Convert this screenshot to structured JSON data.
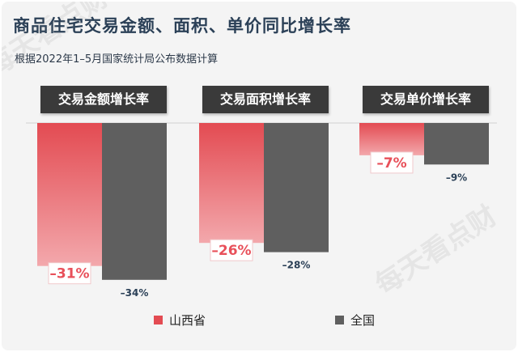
{
  "title": "商品住宅交易金额、面积、单价同比增长率",
  "subtitle": "根据2022年1–5月国家统计局公布数据计算",
  "watermark": "每天看点财",
  "colors": {
    "shanxi_top": "#e34b52",
    "shanxi_bottom": "#f3a8ac",
    "national": "#5f5f5f",
    "label_dark": "#2b4057",
    "label_red": "#e8505a"
  },
  "chart_data": {
    "type": "bar",
    "categories": [
      "交易金额增长率",
      "交易面积增长率",
      "交易单价增长率"
    ],
    "series": [
      {
        "name": "山西省",
        "values": [
          -31,
          -26,
          -7
        ],
        "labels": [
          "–31%",
          "–26%",
          "–7%"
        ]
      },
      {
        "name": "全国",
        "values": [
          -34,
          -28,
          -9
        ],
        "labels": [
          "–34%",
          "–28%",
          "–9%"
        ]
      }
    ],
    "legend": [
      "山西省",
      "全国"
    ],
    "ylim": [
      -34,
      0
    ],
    "legend_position": "bottom"
  }
}
